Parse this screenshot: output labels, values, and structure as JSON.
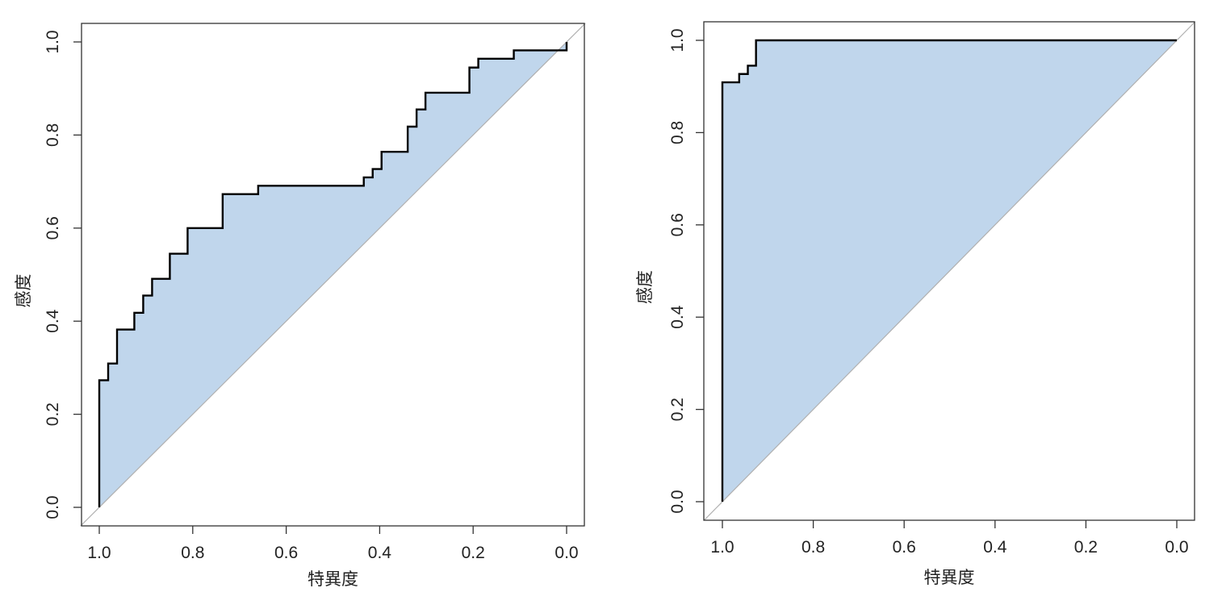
{
  "chart_data": [
    {
      "type": "line",
      "subtype": "roc",
      "title": "",
      "xlabel": "特異度",
      "ylabel": "感度",
      "xlim": [
        1.0,
        0.0
      ],
      "ylim": [
        0.0,
        1.0
      ],
      "x_reversed": true,
      "x_ticks": [
        "1.0",
        "0.8",
        "0.6",
        "0.4",
        "0.2",
        "0.0"
      ],
      "y_ticks": [
        "0.0",
        "0.2",
        "0.4",
        "0.6",
        "0.8",
        "1.0"
      ],
      "fill_color": "#c0d6ec",
      "line_color": "#000000",
      "diagonal_color": "#b0b0b0",
      "grid": false,
      "points": [
        {
          "specificity": 1.0,
          "sensitivity": 0.0
        },
        {
          "specificity": 1.0,
          "sensitivity": 0.273
        },
        {
          "specificity": 0.981,
          "sensitivity": 0.273
        },
        {
          "specificity": 0.981,
          "sensitivity": 0.309
        },
        {
          "specificity": 0.962,
          "sensitivity": 0.309
        },
        {
          "specificity": 0.962,
          "sensitivity": 0.382
        },
        {
          "specificity": 0.925,
          "sensitivity": 0.382
        },
        {
          "specificity": 0.925,
          "sensitivity": 0.418
        },
        {
          "specificity": 0.906,
          "sensitivity": 0.418
        },
        {
          "specificity": 0.906,
          "sensitivity": 0.455
        },
        {
          "specificity": 0.887,
          "sensitivity": 0.455
        },
        {
          "specificity": 0.887,
          "sensitivity": 0.491
        },
        {
          "specificity": 0.849,
          "sensitivity": 0.491
        },
        {
          "specificity": 0.849,
          "sensitivity": 0.545
        },
        {
          "specificity": 0.811,
          "sensitivity": 0.545
        },
        {
          "specificity": 0.811,
          "sensitivity": 0.6
        },
        {
          "specificity": 0.736,
          "sensitivity": 0.6
        },
        {
          "specificity": 0.736,
          "sensitivity": 0.673
        },
        {
          "specificity": 0.66,
          "sensitivity": 0.673
        },
        {
          "specificity": 0.66,
          "sensitivity": 0.691
        },
        {
          "specificity": 0.434,
          "sensitivity": 0.691
        },
        {
          "specificity": 0.434,
          "sensitivity": 0.709
        },
        {
          "specificity": 0.415,
          "sensitivity": 0.709
        },
        {
          "specificity": 0.415,
          "sensitivity": 0.727
        },
        {
          "specificity": 0.396,
          "sensitivity": 0.727
        },
        {
          "specificity": 0.396,
          "sensitivity": 0.764
        },
        {
          "specificity": 0.34,
          "sensitivity": 0.764
        },
        {
          "specificity": 0.34,
          "sensitivity": 0.818
        },
        {
          "specificity": 0.321,
          "sensitivity": 0.818
        },
        {
          "specificity": 0.321,
          "sensitivity": 0.855
        },
        {
          "specificity": 0.302,
          "sensitivity": 0.855
        },
        {
          "specificity": 0.302,
          "sensitivity": 0.891
        },
        {
          "specificity": 0.208,
          "sensitivity": 0.891
        },
        {
          "specificity": 0.208,
          "sensitivity": 0.945
        },
        {
          "specificity": 0.189,
          "sensitivity": 0.945
        },
        {
          "specificity": 0.189,
          "sensitivity": 0.964
        },
        {
          "specificity": 0.113,
          "sensitivity": 0.964
        },
        {
          "specificity": 0.113,
          "sensitivity": 0.982
        },
        {
          "specificity": 0.0,
          "sensitivity": 0.982
        },
        {
          "specificity": 0.0,
          "sensitivity": 1.0
        }
      ]
    },
    {
      "type": "line",
      "subtype": "roc",
      "title": "",
      "xlabel": "特異度",
      "ylabel": "感度",
      "xlim": [
        1.0,
        0.0
      ],
      "ylim": [
        0.0,
        1.0
      ],
      "x_reversed": true,
      "x_ticks": [
        "1.0",
        "0.8",
        "0.6",
        "0.4",
        "0.2",
        "0.0"
      ],
      "y_ticks": [
        "0.0",
        "0.2",
        "0.4",
        "0.6",
        "0.8",
        "1.0"
      ],
      "fill_color": "#c0d6ec",
      "line_color": "#000000",
      "diagonal_color": "#b0b0b0",
      "grid": false,
      "points": [
        {
          "specificity": 1.0,
          "sensitivity": 0.0
        },
        {
          "specificity": 1.0,
          "sensitivity": 0.909
        },
        {
          "specificity": 0.963,
          "sensitivity": 0.909
        },
        {
          "specificity": 0.963,
          "sensitivity": 0.927
        },
        {
          "specificity": 0.944,
          "sensitivity": 0.927
        },
        {
          "specificity": 0.944,
          "sensitivity": 0.945
        },
        {
          "specificity": 0.926,
          "sensitivity": 0.945
        },
        {
          "specificity": 0.926,
          "sensitivity": 1.0
        },
        {
          "specificity": 0.0,
          "sensitivity": 1.0
        }
      ]
    }
  ]
}
